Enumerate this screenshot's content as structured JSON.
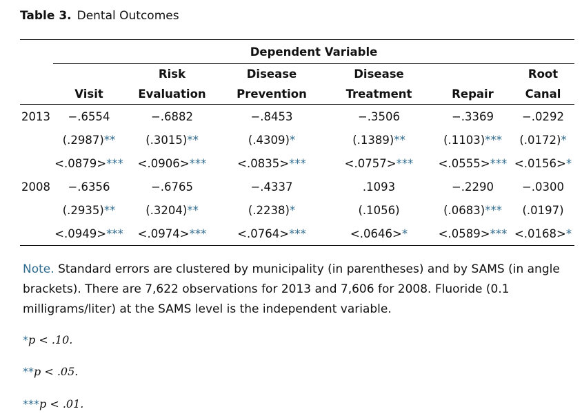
{
  "caption": {
    "label": "Table 3.",
    "title": "Dental Outcomes"
  },
  "group_header": "Dependent Variable",
  "columns": [
    [
      "",
      "Visit"
    ],
    [
      "Risk",
      "Evaluation"
    ],
    [
      "Disease",
      "Prevention"
    ],
    [
      "Disease",
      "Treatment"
    ],
    [
      "",
      "Repair"
    ],
    [
      "Root",
      "Canal"
    ]
  ],
  "rows": [
    {
      "year": "2013",
      "coef": [
        "−.6554",
        "−.6882",
        "−.8453",
        "−.3506",
        "−.3369",
        "−.0292"
      ],
      "se_muni": [
        [
          "(.2987)",
          "**"
        ],
        [
          "(.3015)",
          "**"
        ],
        [
          "(.4309)",
          "*"
        ],
        [
          "(.1389)",
          "**"
        ],
        [
          "(.1103)",
          "***"
        ],
        [
          "(.0172)",
          "*"
        ]
      ],
      "se_sams": [
        [
          "<.0879>",
          "***"
        ],
        [
          "<.0906>",
          "***"
        ],
        [
          "<.0835>",
          "***"
        ],
        [
          "<.0757>",
          "***"
        ],
        [
          "<.0555>",
          "***"
        ],
        [
          "<.0156>",
          "*"
        ]
      ]
    },
    {
      "year": "2008",
      "coef": [
        "−.6356",
        "−.6765",
        "−.4337",
        ".1093",
        "−.2290",
        "−.0300"
      ],
      "se_muni": [
        [
          "(.2935)",
          "**"
        ],
        [
          "(.3204)",
          "**"
        ],
        [
          "(.2238)",
          "*"
        ],
        [
          "(.1056)",
          ""
        ],
        [
          "(.0683)",
          "***"
        ],
        [
          "(.0197)",
          ""
        ]
      ],
      "se_sams": [
        [
          "<.0949>",
          "***"
        ],
        [
          "<.0974>",
          "***"
        ],
        [
          "<.0764>",
          "***"
        ],
        [
          "<.0646>",
          "*"
        ],
        [
          "<.0589>",
          "***"
        ],
        [
          "<.0168>",
          "*"
        ]
      ]
    }
  ],
  "note": {
    "label": "Note.",
    "text": "Standard errors are clustered by municipality (in parentheses) and by SAMS (in angle brackets). There are 7,622 observations for 2013 and 7,606 for 2008. Fluoride (0.1 milligrams/liter) at the SAMS level is the independent variable."
  },
  "footnotes": [
    {
      "stars": "*",
      "text": "p < .10."
    },
    {
      "stars": "**",
      "text": "p < .05."
    },
    {
      "stars": "***",
      "text": "p < .01."
    }
  ],
  "colors": {
    "accent": "#2f6b8f"
  }
}
